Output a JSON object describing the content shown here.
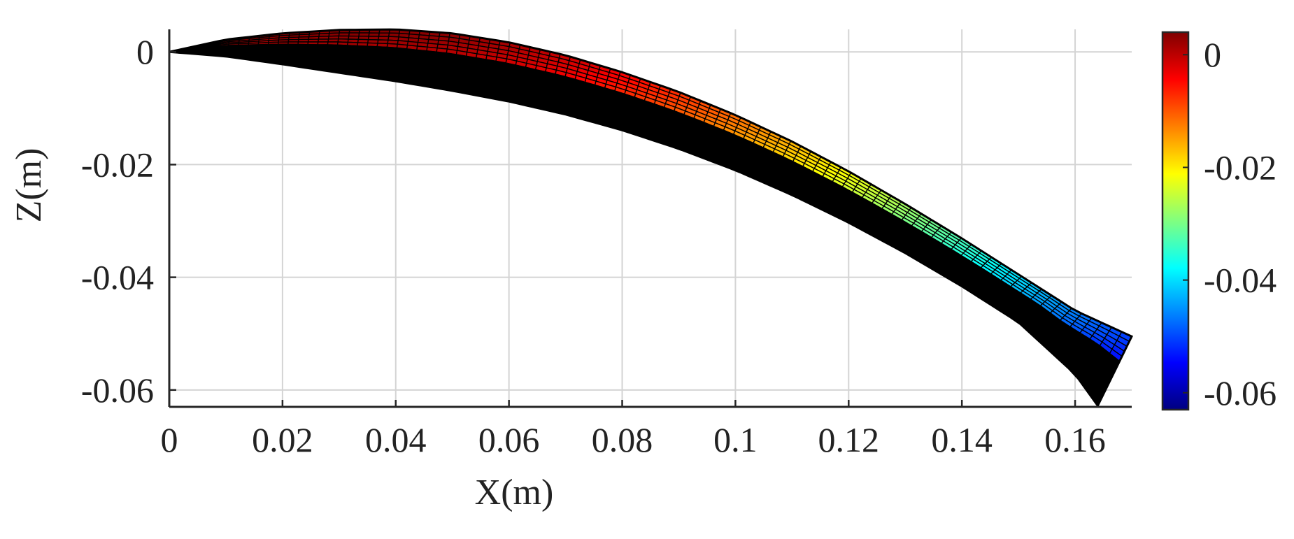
{
  "chart_data": {
    "type": "surface",
    "title": "",
    "xlabel": "X(m)",
    "ylabel": "Z(m)",
    "xlim": [
      0,
      0.17
    ],
    "ylim": [
      -0.063,
      0.004
    ],
    "xticks": [
      0,
      0.02,
      0.04,
      0.06,
      0.08,
      0.1,
      0.12,
      0.14,
      0.16
    ],
    "xtick_labels": [
      "0",
      "0.02",
      "0.04",
      "0.06",
      "0.08",
      "0.1",
      "0.12",
      "0.14",
      "0.16"
    ],
    "yticks": [
      0,
      -0.02,
      -0.04,
      -0.06
    ],
    "ytick_labels": [
      "0",
      "-0.02",
      "-0.04",
      "-0.06"
    ],
    "grid": true,
    "surface": {
      "upper_edge": {
        "x": [
          0,
          0.01,
          0.02,
          0.03,
          0.04,
          0.05,
          0.06,
          0.07,
          0.08,
          0.09,
          0.1,
          0.11,
          0.12,
          0.13,
          0.14,
          0.15,
          0.16,
          0.17
        ],
        "z": [
          0,
          0.0022,
          0.0033,
          0.0039,
          0.004,
          0.0033,
          0.0017,
          -0.0006,
          -0.0036,
          -0.0071,
          -0.0112,
          -0.0159,
          -0.0212,
          -0.027,
          -0.0331,
          -0.0395,
          -0.0459,
          -0.0505
        ]
      },
      "lower_edge": {
        "x": [
          0,
          0.01,
          0.02,
          0.03,
          0.04,
          0.05,
          0.06,
          0.07,
          0.08,
          0.09,
          0.1,
          0.11,
          0.12,
          0.13,
          0.14,
          0.15,
          0.16,
          0.164
        ],
        "z": [
          0,
          -0.0008,
          -0.0022,
          -0.0037,
          -0.0052,
          -0.0069,
          -0.0088,
          -0.0111,
          -0.0139,
          -0.0172,
          -0.021,
          -0.0254,
          -0.0303,
          -0.0357,
          -0.0416,
          -0.048,
          -0.0572,
          -0.0628
        ]
      },
      "color_variable": "Z",
      "edge_color": "#000000"
    },
    "colorbar": {
      "colormap": "jet",
      "range": [
        -0.063,
        0.004
      ],
      "ticks": [
        0,
        -0.02,
        -0.04,
        -0.06
      ],
      "tick_labels": [
        "0",
        "-0.02",
        "-0.04",
        "-0.06"
      ]
    }
  }
}
